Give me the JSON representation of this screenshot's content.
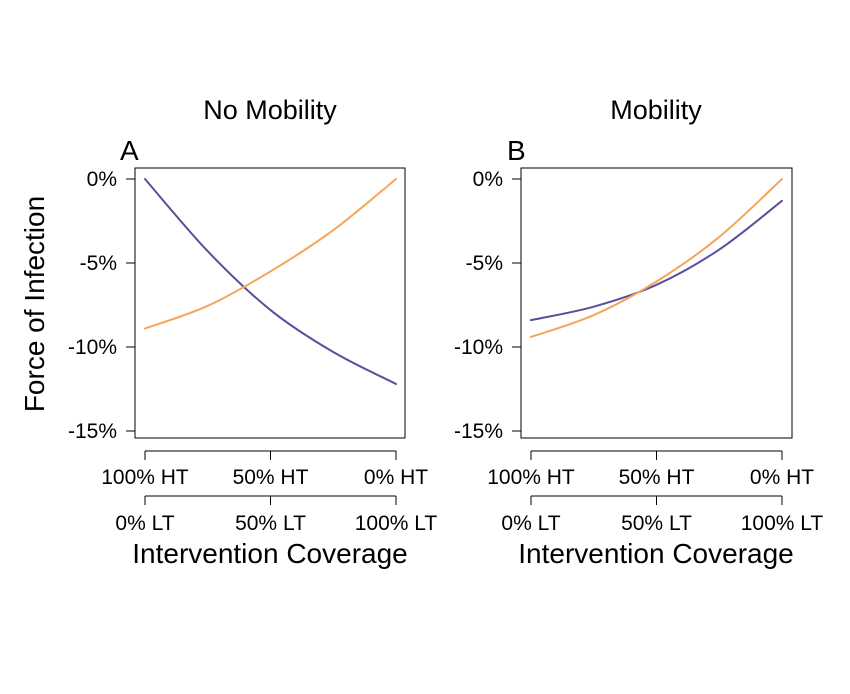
{
  "chart_data": [
    {
      "type": "line",
      "panel": "A",
      "title": "No Mobility",
      "ylabel": "Force of Infection",
      "xlabel": "Intervention Coverage",
      "x": [
        0,
        0.25,
        0.5,
        0.75,
        1
      ],
      "x_tick_labels_top": [
        "100% HT",
        "50% HT",
        "0% HT"
      ],
      "x_tick_labels_bottom": [
        "0% LT",
        "50% LT",
        "100% LT"
      ],
      "y_ticks": [
        0,
        -5,
        -10,
        -15
      ],
      "y_tick_labels": [
        "0%",
        "-5%",
        "-10%",
        "-15%"
      ],
      "xlim": [
        0,
        1
      ],
      "ylim": [
        -15.5,
        0.6
      ],
      "colors": {
        "purple": "#5a4e9c",
        "orange": "#f5a55a"
      },
      "series": [
        {
          "color": "purple",
          "values": [
            0,
            -4.3,
            -7.8,
            -10.3,
            -12.2
          ]
        },
        {
          "color": "orange",
          "values": [
            -8.9,
            -7.55,
            -5.5,
            -3.05,
            0
          ]
        }
      ]
    },
    {
      "type": "line",
      "panel": "B",
      "title": "Mobility",
      "ylabel": "",
      "xlabel": "Intervention Coverage",
      "x": [
        0,
        0.25,
        0.5,
        0.75,
        1
      ],
      "x_tick_labels_top": [
        "100% HT",
        "50% HT",
        "0% HT"
      ],
      "x_tick_labels_bottom": [
        "0% LT",
        "50% LT",
        "100% LT"
      ],
      "y_ticks": [
        0,
        -5,
        -10,
        -15
      ],
      "y_tick_labels": [
        "0%",
        "-5%",
        "-10%",
        "-15%"
      ],
      "xlim": [
        0,
        1
      ],
      "ylim": [
        -15.5,
        0.6
      ],
      "colors": {
        "purple": "#5a4e9c",
        "orange": "#f5a55a"
      },
      "series": [
        {
          "color": "purple",
          "values": [
            -8.4,
            -7.6,
            -6.3,
            -4.2,
            -1.3
          ]
        },
        {
          "color": "orange",
          "values": [
            -9.4,
            -8.1,
            -6.1,
            -3.45,
            0
          ]
        }
      ]
    }
  ]
}
